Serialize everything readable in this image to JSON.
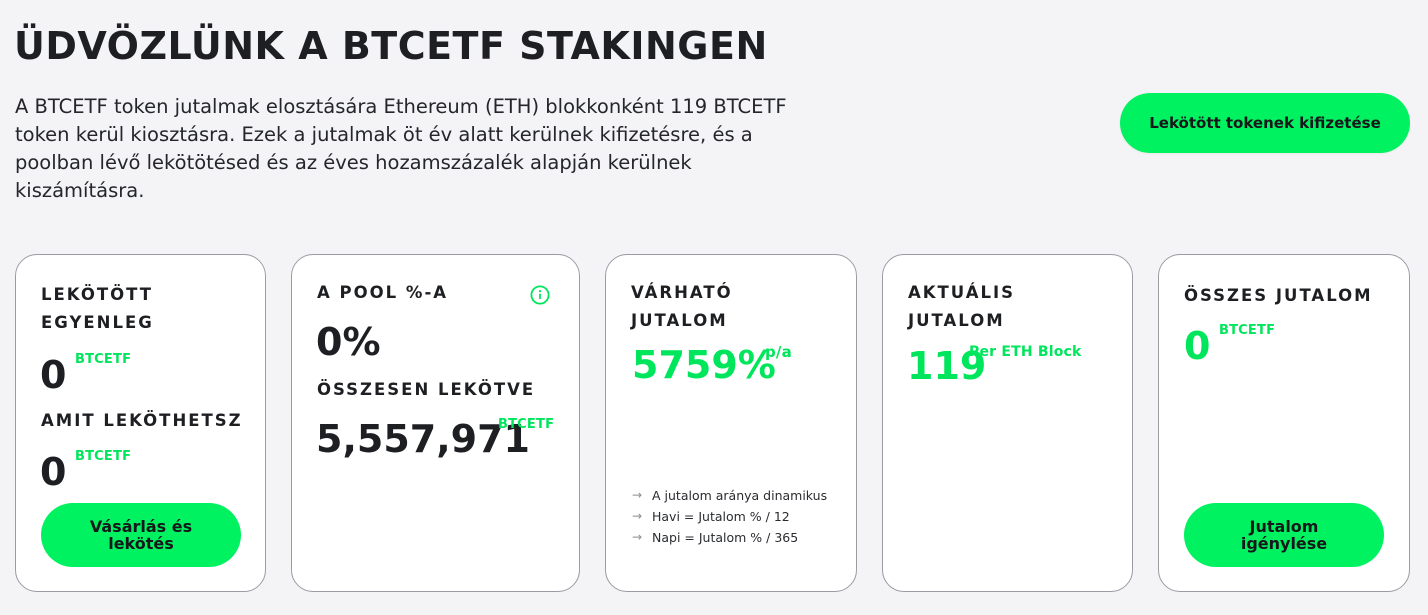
{
  "header": {
    "title": "ÜDVÖZLÜNK A BTCETF STAKINGEN",
    "intro": "A BTCETF token jutalmak elosztására Ethereum (ETH) blokkonként 119 BTCETF token kerül kiosztásra. Ezek a jutalmak öt év alatt kerülnek kifizetésre, és a poolban lévő lekötötésed és az éves hozamszázalék alapján kerülnek kiszámításra.",
    "withdraw_button": "Lekötött tokenek kifizetése"
  },
  "colors": {
    "accent": "#00f260",
    "accent_text": "#00e65c",
    "background": "#f4f4f6",
    "card_border": "#9a9ca3"
  },
  "cards": {
    "staked": {
      "label": "LEKÖTÖTT EGYENLEG",
      "value": "0",
      "unit": "BTCETF",
      "stakeable_label": "AMIT LEKÖTHETSZ",
      "stakeable_value": "0",
      "stakeable_unit": "BTCETF",
      "button": "Vásárlás és lekötés"
    },
    "pool": {
      "label": "A POOL %-A",
      "value": "0%",
      "info_icon": "info-icon",
      "total_label": "ÖSSZESEN LEKÖTVE",
      "total_value": "5,557,971",
      "total_unit": "BTCETF"
    },
    "expected": {
      "label": "VÁRHATÓ JUTALOM",
      "value": "5759%",
      "unit": "p/a",
      "notes": [
        "A jutalom aránya dinamikus",
        "Havi = Jutalom % / 12",
        "Napi = Jutalom % / 365"
      ]
    },
    "current": {
      "label": "AKTUÁLIS JUTALOM",
      "value": "119",
      "unit": "Per ETH Block"
    },
    "total": {
      "label": "ÖSSZES JUTALOM",
      "value": "0",
      "unit": "BTCETF",
      "button": "Jutalom igénylése"
    }
  }
}
